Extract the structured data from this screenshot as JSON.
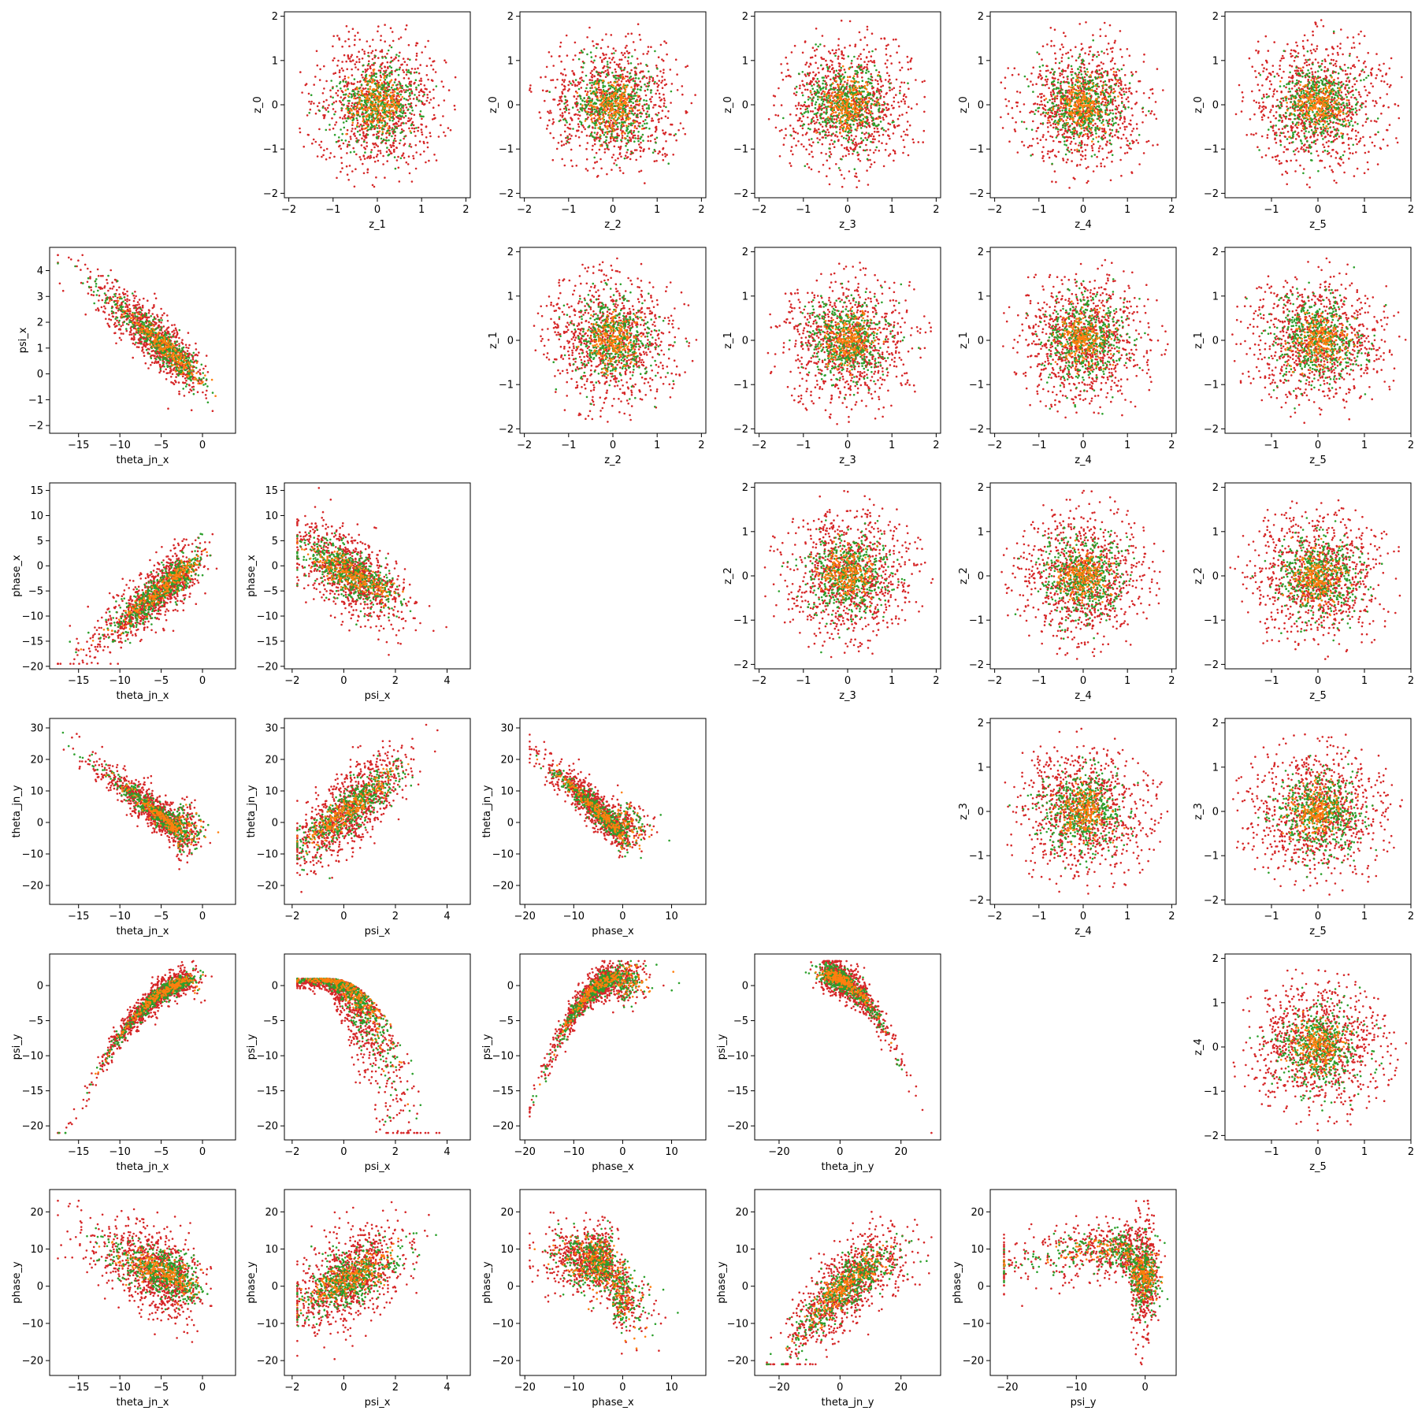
{
  "figure": {
    "rows": 6,
    "cols": 6
  },
  "colors": {
    "series_a": "#d62728",
    "series_b": "#2ca02c",
    "series_c": "#ff7f0e"
  },
  "chart_data": [
    {
      "type": "scatter",
      "row": 0,
      "col": 1,
      "xlabel": "z_1",
      "ylabel": "z_0",
      "xlim": [
        -2.1,
        2.1
      ],
      "ylim": [
        -2.1,
        2.1
      ],
      "xticks": [
        -2,
        -1,
        0,
        1,
        2
      ],
      "yticks": [
        -2,
        -1,
        0,
        1,
        2
      ],
      "pattern": "blob"
    },
    {
      "type": "scatter",
      "row": 0,
      "col": 2,
      "xlabel": "z_2",
      "ylabel": "z_0",
      "xlim": [
        -2.1,
        2.1
      ],
      "ylim": [
        -2.1,
        2.1
      ],
      "xticks": [
        -2,
        -1,
        0,
        1,
        2
      ],
      "yticks": [
        -2,
        -1,
        0,
        1,
        2
      ],
      "pattern": "blob"
    },
    {
      "type": "scatter",
      "row": 0,
      "col": 3,
      "xlabel": "z_3",
      "ylabel": "z_0",
      "xlim": [
        -2.1,
        2.1
      ],
      "ylim": [
        -2.1,
        2.1
      ],
      "xticks": [
        -2,
        -1,
        0,
        1,
        2
      ],
      "yticks": [
        -2,
        -1,
        0,
        1,
        2
      ],
      "pattern": "blob"
    },
    {
      "type": "scatter",
      "row": 0,
      "col": 4,
      "xlabel": "z_4",
      "ylabel": "z_0",
      "xlim": [
        -2.1,
        2.1
      ],
      "ylim": [
        -2.1,
        2.1
      ],
      "xticks": [
        -2,
        -1,
        0,
        1,
        2
      ],
      "yticks": [
        -2,
        -1,
        0,
        1,
        2
      ],
      "pattern": "blob"
    },
    {
      "type": "scatter",
      "row": 0,
      "col": 5,
      "xlabel": "z_5",
      "ylabel": "z_0",
      "xlim": [
        -2.0,
        2.0
      ],
      "ylim": [
        -2.1,
        2.1
      ],
      "xticks": [
        -1,
        0,
        1,
        2
      ],
      "yticks": [
        -2,
        -1,
        0,
        1,
        2
      ],
      "pattern": "blob"
    },
    {
      "type": "scatter",
      "row": 1,
      "col": 0,
      "xlabel": "theta_jn_x",
      "ylabel": "psi_x",
      "xlim": [
        -18.5,
        4
      ],
      "ylim": [
        -2.3,
        4.9
      ],
      "xticks": [
        -15,
        -10,
        -5,
        0
      ],
      "yticks": [
        -2,
        -1,
        0,
        1,
        2,
        3,
        4
      ],
      "pattern": "theta_psi"
    },
    {
      "type": "scatter",
      "row": 1,
      "col": 2,
      "xlabel": "z_2",
      "ylabel": "z_1",
      "xlim": [
        -2.1,
        2.1
      ],
      "ylim": [
        -2.1,
        2.1
      ],
      "xticks": [
        -2,
        -1,
        0,
        1,
        2
      ],
      "yticks": [
        -2,
        -1,
        0,
        1,
        2
      ],
      "pattern": "blob"
    },
    {
      "type": "scatter",
      "row": 1,
      "col": 3,
      "xlabel": "z_3",
      "ylabel": "z_1",
      "xlim": [
        -2.1,
        2.1
      ],
      "ylim": [
        -2.1,
        2.1
      ],
      "xticks": [
        -2,
        -1,
        0,
        1,
        2
      ],
      "yticks": [
        -2,
        -1,
        0,
        1,
        2
      ],
      "pattern": "blob"
    },
    {
      "type": "scatter",
      "row": 1,
      "col": 4,
      "xlabel": "z_4",
      "ylabel": "z_1",
      "xlim": [
        -2.1,
        2.1
      ],
      "ylim": [
        -2.1,
        2.1
      ],
      "xticks": [
        -2,
        -1,
        0,
        1,
        2
      ],
      "yticks": [
        -2,
        -1,
        0,
        1,
        2
      ],
      "pattern": "blob"
    },
    {
      "type": "scatter",
      "row": 1,
      "col": 5,
      "xlabel": "z_5",
      "ylabel": "z_1",
      "xlim": [
        -2.0,
        2.0
      ],
      "ylim": [
        -2.1,
        2.1
      ],
      "xticks": [
        -1,
        0,
        1,
        2
      ],
      "yticks": [
        -2,
        -1,
        0,
        1,
        2
      ],
      "pattern": "blob"
    },
    {
      "type": "scatter",
      "row": 2,
      "col": 0,
      "xlabel": "theta_jn_x",
      "ylabel": "phase_x",
      "xlim": [
        -18.5,
        4
      ],
      "ylim": [
        -20.5,
        16.5
      ],
      "xticks": [
        -15,
        -10,
        -5,
        0
      ],
      "yticks": [
        -20,
        -15,
        -10,
        -5,
        0,
        5,
        10,
        15
      ],
      "pattern": "theta_phase"
    },
    {
      "type": "scatter",
      "row": 2,
      "col": 1,
      "xlabel": "psi_x",
      "ylabel": "phase_x",
      "xlim": [
        -2.3,
        4.9
      ],
      "ylim": [
        -20.5,
        16.5
      ],
      "xticks": [
        -2,
        0,
        2,
        4
      ],
      "yticks": [
        -20,
        -15,
        -10,
        -5,
        0,
        5,
        10,
        15
      ],
      "pattern": "psi_phase"
    },
    {
      "type": "scatter",
      "row": 2,
      "col": 3,
      "xlabel": "z_3",
      "ylabel": "z_2",
      "xlim": [
        -2.1,
        2.1
      ],
      "ylim": [
        -2.1,
        2.1
      ],
      "xticks": [
        -2,
        -1,
        0,
        1,
        2
      ],
      "yticks": [
        -2,
        -1,
        0,
        1,
        2
      ],
      "pattern": "blob"
    },
    {
      "type": "scatter",
      "row": 2,
      "col": 4,
      "xlabel": "z_4",
      "ylabel": "z_2",
      "xlim": [
        -2.1,
        2.1
      ],
      "ylim": [
        -2.1,
        2.1
      ],
      "xticks": [
        -2,
        -1,
        0,
        1,
        2
      ],
      "yticks": [
        -2,
        -1,
        0,
        1,
        2
      ],
      "pattern": "blob"
    },
    {
      "type": "scatter",
      "row": 2,
      "col": 5,
      "xlabel": "z_5",
      "ylabel": "z_2",
      "xlim": [
        -2.0,
        2.0
      ],
      "ylim": [
        -2.1,
        2.1
      ],
      "xticks": [
        -1,
        0,
        1,
        2
      ],
      "yticks": [
        -2,
        -1,
        0,
        1,
        2
      ],
      "pattern": "blob"
    },
    {
      "type": "scatter",
      "row": 3,
      "col": 0,
      "xlabel": "theta_jn_x",
      "ylabel": "theta_jn_y",
      "xlim": [
        -18.5,
        4
      ],
      "ylim": [
        -26,
        33
      ],
      "xticks": [
        -15,
        -10,
        -5,
        0
      ],
      "yticks": [
        -20,
        -10,
        0,
        10,
        20,
        30
      ],
      "pattern": "theta_thetay"
    },
    {
      "type": "scatter",
      "row": 3,
      "col": 1,
      "xlabel": "psi_x",
      "ylabel": "theta_jn_y",
      "xlim": [
        -2.3,
        4.9
      ],
      "ylim": [
        -26,
        33
      ],
      "xticks": [
        -2,
        0,
        2,
        4
      ],
      "yticks": [
        -20,
        -10,
        0,
        10,
        20,
        30
      ],
      "pattern": "psi_thetay"
    },
    {
      "type": "scatter",
      "row": 3,
      "col": 2,
      "xlabel": "phase_x",
      "ylabel": "theta_jn_y",
      "xlim": [
        -21,
        17
      ],
      "ylim": [
        -26,
        33
      ],
      "xticks": [
        -20,
        -10,
        0,
        10
      ],
      "yticks": [
        -20,
        -10,
        0,
        10,
        20,
        30
      ],
      "pattern": "phase_thetay"
    },
    {
      "type": "scatter",
      "row": 3,
      "col": 4,
      "xlabel": "z_4",
      "ylabel": "z_3",
      "xlim": [
        -2.1,
        2.1
      ],
      "ylim": [
        -2.1,
        2.1
      ],
      "xticks": [
        -2,
        -1,
        0,
        1,
        2
      ],
      "yticks": [
        -2,
        -1,
        0,
        1,
        2
      ],
      "pattern": "blob"
    },
    {
      "type": "scatter",
      "row": 3,
      "col": 5,
      "xlabel": "z_5",
      "ylabel": "z_3",
      "xlim": [
        -2.0,
        2.0
      ],
      "ylim": [
        -2.1,
        2.1
      ],
      "xticks": [
        -1,
        0,
        1,
        2
      ],
      "yticks": [
        -2,
        -1,
        0,
        1,
        2
      ],
      "pattern": "blob"
    },
    {
      "type": "scatter",
      "row": 4,
      "col": 0,
      "xlabel": "theta_jn_x",
      "ylabel": "psi_y",
      "xlim": [
        -18.5,
        4
      ],
      "ylim": [
        -22,
        4.5
      ],
      "xticks": [
        -15,
        -10,
        -5,
        0
      ],
      "yticks": [
        -20,
        -15,
        -10,
        -5,
        0
      ],
      "pattern": "theta_psiy"
    },
    {
      "type": "scatter",
      "row": 4,
      "col": 1,
      "xlabel": "psi_x",
      "ylabel": "psi_y",
      "xlim": [
        -2.3,
        4.9
      ],
      "ylim": [
        -22,
        4.5
      ],
      "xticks": [
        -2,
        0,
        2,
        4
      ],
      "yticks": [
        -20,
        -15,
        -10,
        -5,
        0
      ],
      "pattern": "psi_psiy"
    },
    {
      "type": "scatter",
      "row": 4,
      "col": 2,
      "xlabel": "phase_x",
      "ylabel": "psi_y",
      "xlim": [
        -21,
        17
      ],
      "ylim": [
        -22,
        4.5
      ],
      "xticks": [
        -20,
        -10,
        0,
        10
      ],
      "yticks": [
        -20,
        -15,
        -10,
        -5,
        0
      ],
      "pattern": "phase_psiy"
    },
    {
      "type": "scatter",
      "row": 4,
      "col": 3,
      "xlabel": "theta_jn_y",
      "ylabel": "psi_y",
      "xlim": [
        -28,
        33
      ],
      "ylim": [
        -22,
        4.5
      ],
      "xticks": [
        -20,
        0,
        20
      ],
      "yticks": [
        -20,
        -15,
        -10,
        -5,
        0
      ],
      "pattern": "thetay_psiy"
    },
    {
      "type": "scatter",
      "row": 4,
      "col": 5,
      "xlabel": "z_5",
      "ylabel": "z_4",
      "xlim": [
        -2.0,
        2.0
      ],
      "ylim": [
        -2.1,
        2.1
      ],
      "xticks": [
        -1,
        0,
        1,
        2
      ],
      "yticks": [
        -2,
        -1,
        0,
        1,
        2
      ],
      "pattern": "blob"
    },
    {
      "type": "scatter",
      "row": 5,
      "col": 0,
      "xlabel": "theta_jn_x",
      "ylabel": "phase_y",
      "xlim": [
        -18.5,
        4
      ],
      "ylim": [
        -24,
        26
      ],
      "xticks": [
        -15,
        -10,
        -5,
        0
      ],
      "yticks": [
        -20,
        -10,
        0,
        10,
        20
      ],
      "pattern": "theta_phasey"
    },
    {
      "type": "scatter",
      "row": 5,
      "col": 1,
      "xlabel": "psi_x",
      "ylabel": "phase_y",
      "xlim": [
        -2.3,
        4.9
      ],
      "ylim": [
        -24,
        26
      ],
      "xticks": [
        -2,
        0,
        2,
        4
      ],
      "yticks": [
        -20,
        -10,
        0,
        10,
        20
      ],
      "pattern": "psi_phasey"
    },
    {
      "type": "scatter",
      "row": 5,
      "col": 2,
      "xlabel": "phase_x",
      "ylabel": "phase_y",
      "xlim": [
        -21,
        17
      ],
      "ylim": [
        -24,
        26
      ],
      "xticks": [
        -20,
        -10,
        0,
        10
      ],
      "yticks": [
        -20,
        -10,
        0,
        10,
        20
      ],
      "pattern": "phase_phasey"
    },
    {
      "type": "scatter",
      "row": 5,
      "col": 3,
      "xlabel": "theta_jn_y",
      "ylabel": "phase_y",
      "xlim": [
        -28,
        33
      ],
      "ylim": [
        -24,
        26
      ],
      "xticks": [
        -20,
        0,
        20
      ],
      "yticks": [
        -20,
        -10,
        0,
        10,
        20
      ],
      "pattern": "thetay_phasey"
    },
    {
      "type": "scatter",
      "row": 5,
      "col": 4,
      "xlabel": "psi_y",
      "ylabel": "phase_y",
      "xlim": [
        -22.5,
        4.5
      ],
      "ylim": [
        -24,
        26
      ],
      "xticks": [
        -20,
        -10,
        0
      ],
      "yticks": [
        -20,
        -10,
        0,
        10,
        20
      ],
      "pattern": "psiy_phasey"
    }
  ]
}
